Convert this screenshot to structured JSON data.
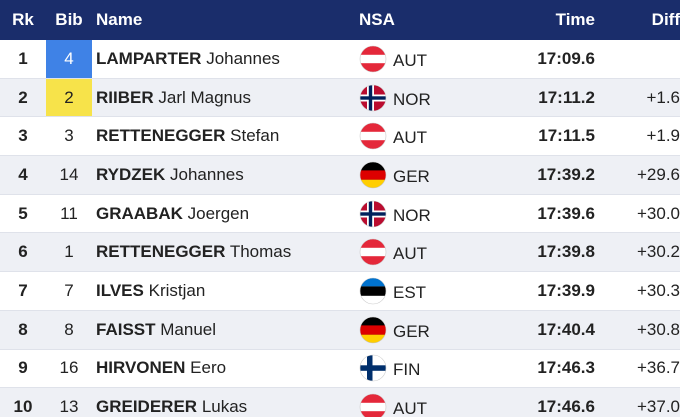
{
  "table": {
    "header": [
      "Rk",
      "Bib",
      "Name",
      "NSA",
      "Time",
      "Diff"
    ],
    "rows": [
      {
        "rank": 1,
        "bib": 4,
        "surname": "LAMPARTER",
        "given": "Johannes",
        "nsa": "AUT",
        "time": "17:09.6"
      },
      {
        "rank": 2,
        "bib": 2,
        "surname": "RIIBER",
        "given": "Jarl Magnus",
        "nsa": "NOR",
        "time": "17:11.2",
        "diff": "+1.6"
      },
      {
        "rank": 3,
        "bib": 3,
        "surname": "RETTENEGGER",
        "given": "Stefan",
        "nsa": "AUT",
        "time": "17:11.5",
        "diff": "+1.9"
      },
      {
        "rank": 4,
        "bib": 14,
        "surname": "RYDZEK",
        "given": "Johannes",
        "nsa": "GER",
        "time": "17:39.2",
        "diff": "+29.6"
      },
      {
        "rank": 5,
        "bib": 11,
        "surname": "GRAABAK",
        "given": "Joergen",
        "nsa": "NOR",
        "time": "17:39.6",
        "diff": "+30.0"
      },
      {
        "rank": 6,
        "bib": 1,
        "surname": "RETTENEGGER",
        "given": "Thomas",
        "nsa": "AUT",
        "time": "17:39.8",
        "diff": "+30.2"
      },
      {
        "rank": 7,
        "bib": 7,
        "surname": "ILVES",
        "given": "Kristjan",
        "nsa": "EST",
        "time": "17:39.9",
        "diff": "+30.3"
      },
      {
        "rank": 8,
        "bib": 8,
        "surname": "FAISST",
        "given": "Manuel",
        "nsa": "GER",
        "time": "17:40.4",
        "diff": "+30.8"
      },
      {
        "rank": 9,
        "bib": 16,
        "surname": "HIRVONEN",
        "given": "Eero",
        "nsa": "FIN",
        "time": "17:46.3",
        "diff": "+36.7"
      },
      {
        "rank": 10,
        "bib": 13,
        "surname": "GREIDERER",
        "given": "Lukas",
        "nsa": "AUT",
        "time": "17:46.6",
        "diff": "+37.0"
      }
    ]
  }
}
